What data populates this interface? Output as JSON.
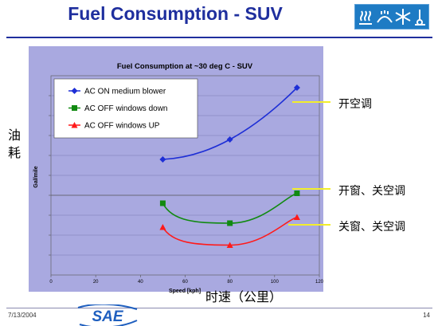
{
  "slide": {
    "title": "Fuel Consumption - SUV",
    "date": "7/13/2004",
    "page_number": "14",
    "logo_text": "SAE",
    "icon_strip": [
      "heat-vent-icon",
      "defrost-icon",
      "snowflake-icon",
      "thermometer-icon"
    ]
  },
  "annotations": {
    "y_axis_cn": [
      "油",
      "耗"
    ],
    "x_axis_cn": "时速（公里）",
    "series_notes": [
      "开空调",
      "开窗、关空调",
      "关窗、关空调"
    ]
  },
  "chart_data": {
    "type": "line",
    "title": "Fuel Consumption at ~30 deg C - SUV",
    "xlabel": "Speed [kph]",
    "ylabel": "Gal/mile",
    "xlim": [
      0,
      120
    ],
    "xticks": [
      0,
      20,
      40,
      60,
      80,
      100,
      120
    ],
    "ylim": [
      0,
      1
    ],
    "y_tick_labels_shown": false,
    "grid": "horizontal",
    "legend_position": "top-left",
    "background": "#a9a9e0",
    "x": [
      50,
      80,
      110
    ],
    "series": [
      {
        "name": "AC ON medium blower",
        "values": [
          0.58,
          0.68,
          0.94
        ],
        "color": "#1e2fd6",
        "marker": "diamond"
      },
      {
        "name": "AC OFF windows down",
        "values": [
          0.36,
          0.26,
          0.41
        ],
        "color": "#118a11",
        "marker": "square"
      },
      {
        "name": "AC OFF windows UP",
        "values": [
          0.24,
          0.15,
          0.29
        ],
        "color": "#ff1a1a",
        "marker": "triangle"
      }
    ]
  }
}
